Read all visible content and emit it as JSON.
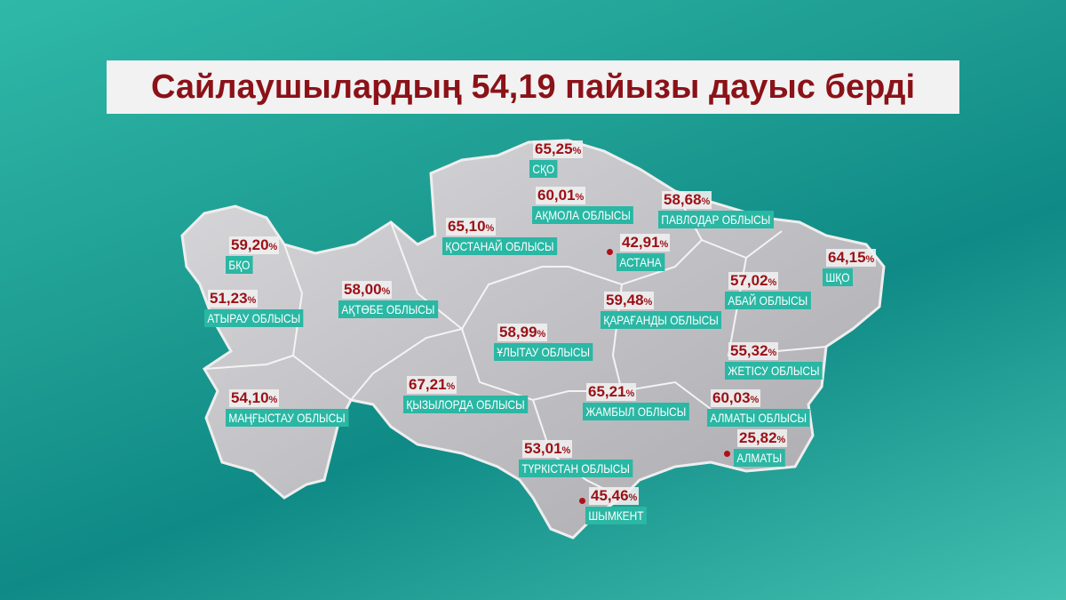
{
  "header": {
    "title": "Сайлаушылардың 54,19 пайызы дауыс берді"
  },
  "unit": "%",
  "regions": [
    {
      "name": "СҚО",
      "value": "65,25"
    },
    {
      "name": "АҚМОЛА ОБЛЫСЫ",
      "value": "60,01"
    },
    {
      "name": "ПАВЛОДАР ОБЛЫСЫ",
      "value": "58,68"
    },
    {
      "name": "ҚОСТАНАЙ ОБЛЫСЫ",
      "value": "65,10"
    },
    {
      "name": "АСТАНА",
      "value": "42,91"
    },
    {
      "name": "БҚО",
      "value": "59,20"
    },
    {
      "name": "ШҚО",
      "value": "64,15"
    },
    {
      "name": "АҚТӨБЕ ОБЛЫСЫ",
      "value": "58,00"
    },
    {
      "name": "АТЫРАУ ОБЛЫСЫ",
      "value": "51,23"
    },
    {
      "name": "АБАЙ ОБЛЫСЫ",
      "value": "57,02"
    },
    {
      "name": "ҚАРАҒАНДЫ ОБЛЫСЫ",
      "value": "59,48"
    },
    {
      "name": "ҰЛЫТАУ ОБЛЫСЫ",
      "value": "58,99"
    },
    {
      "name": "ЖЕТІСУ ОБЛЫСЫ",
      "value": "55,32"
    },
    {
      "name": "ҚЫЗЫЛОРДА ОБЛЫСЫ",
      "value": "67,21"
    },
    {
      "name": "ЖАМБЫЛ ОБЛЫСЫ",
      "value": "65,21"
    },
    {
      "name": "МАҢҒЫСТАУ ОБЛЫСЫ",
      "value": "54,10"
    },
    {
      "name": "АЛМАТЫ ОБЛЫСЫ",
      "value": "60,03"
    },
    {
      "name": "АЛМАТЫ",
      "value": "25,82"
    },
    {
      "name": "ТҮРКІСТАН ОБЛЫСЫ",
      "value": "53,01"
    },
    {
      "name": "ШЫМКЕНТ",
      "value": "45,46"
    }
  ]
}
